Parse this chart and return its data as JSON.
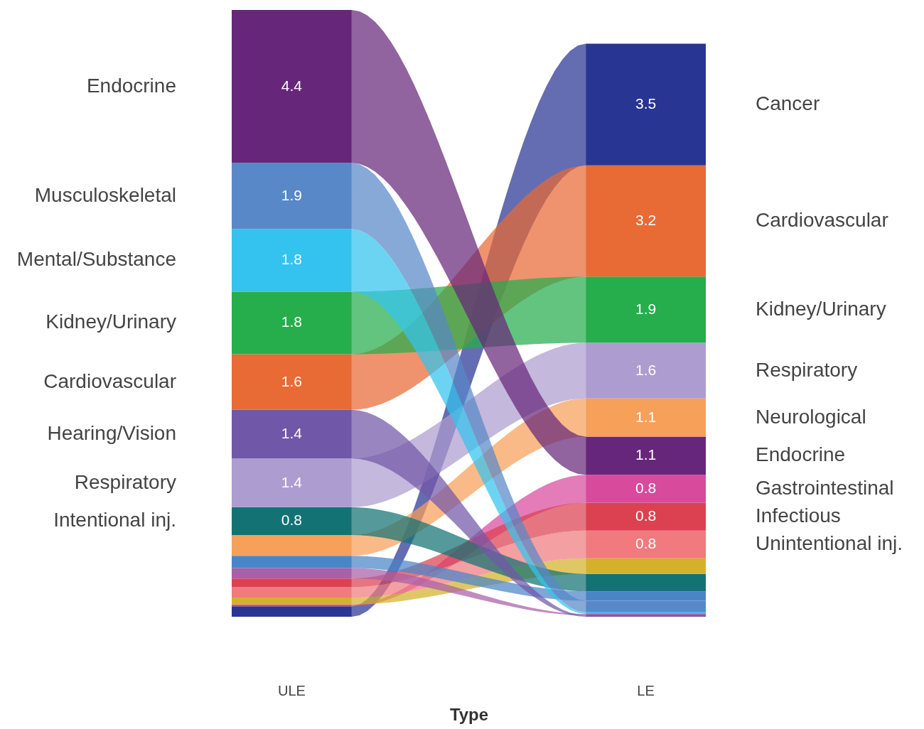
{
  "chart_data": {
    "type": "bar",
    "stacked": true,
    "xlabel": "Type",
    "categories": [
      "ULE",
      "LE"
    ],
    "series": [
      {
        "color": "#283593",
        "values": [
          0.3,
          null
        ]
      },
      {
        "color": "#d84a9c",
        "values": [
          0.05,
          null
        ]
      },
      {
        "color": "#d4b12a",
        "values": [
          0.2,
          null
        ]
      },
      {
        "color": "#f07a7e",
        "values": [
          0.3,
          null
        ]
      },
      {
        "color": "#db4151",
        "values": [
          0.25,
          null
        ]
      },
      {
        "color": "#a860a8",
        "values": [
          0.3,
          null
        ]
      },
      {
        "color": "#4a85c8",
        "values": [
          0.35,
          null
        ]
      },
      {
        "color": "#f6a05a",
        "values": [
          0.6,
          null
        ]
      },
      {
        "name": "Intentional inj.",
        "color": "#137273",
        "values": [
          0.8,
          null
        ],
        "value_labels": [
          "0.8",
          null
        ]
      },
      {
        "name": "Respiratory",
        "color": "#ad9ccf",
        "values": [
          1.4,
          null
        ],
        "value_labels": [
          "1.4",
          null
        ]
      },
      {
        "name": "Hearing/Vision",
        "color": "#7157a8",
        "values": [
          1.4,
          null
        ],
        "value_labels": [
          "1.4",
          null
        ]
      },
      {
        "name": "Cardiovascular",
        "color": "#e86a35",
        "values": [
          1.6,
          null
        ],
        "value_labels": [
          "1.6",
          null
        ]
      },
      {
        "name": "Kidney/Urinary",
        "color": "#26ad4c",
        "values": [
          1.8,
          null
        ],
        "value_labels": [
          "1.8",
          null
        ]
      },
      {
        "name": "Mental/Substance",
        "color": "#33c3ee",
        "values": [
          1.8,
          null
        ],
        "value_labels": [
          "1.8",
          null
        ]
      },
      {
        "name": "Musculoskeletal",
        "color": "#5888c8",
        "values": [
          1.9,
          null
        ],
        "value_labels": [
          "1.9",
          null
        ]
      },
      {
        "name": "Endocrine",
        "color": "#66277a",
        "values": [
          4.4,
          null
        ],
        "value_labels": [
          "4.4",
          null
        ]
      },
      {
        "color": "#7157a8",
        "values": [
          null,
          0.04
        ]
      },
      {
        "color": "#a860a8",
        "values": [
          null,
          0.04
        ]
      },
      {
        "color": "#33c3ee",
        "values": [
          null,
          0.05
        ]
      },
      {
        "color": "#5888c8",
        "values": [
          null,
          0.33
        ]
      },
      {
        "color": "#4a85c8",
        "values": [
          null,
          0.27
        ]
      },
      {
        "color": "#137273",
        "values": [
          null,
          0.5
        ]
      },
      {
        "color": "#d4b12a",
        "values": [
          null,
          0.45
        ]
      },
      {
        "name": "Unintentional inj.",
        "color": "#f07a7e",
        "values": [
          null,
          0.8
        ],
        "value_labels": [
          null,
          "0.8"
        ]
      },
      {
        "name": "Infectious",
        "color": "#db4151",
        "values": [
          null,
          0.8
        ],
        "value_labels": [
          null,
          "0.8"
        ]
      },
      {
        "name": "Gastrointestinal",
        "color": "#d84a9c",
        "values": [
          null,
          0.8
        ],
        "value_labels": [
          null,
          "0.8"
        ]
      },
      {
        "name": "Endocrine",
        "color": "#66277a",
        "values": [
          null,
          1.1
        ],
        "value_labels": [
          null,
          "1.1"
        ]
      },
      {
        "name": "Neurological",
        "color": "#f6a05a",
        "values": [
          null,
          1.1
        ],
        "value_labels": [
          null,
          "1.1"
        ]
      },
      {
        "name": "Respiratory",
        "color": "#ad9ccf",
        "values": [
          null,
          1.6
        ],
        "value_labels": [
          null,
          "1.6"
        ]
      },
      {
        "name": "Kidney/Urinary",
        "color": "#26ad4c",
        "values": [
          null,
          1.9
        ],
        "value_labels": [
          null,
          "1.9"
        ]
      },
      {
        "name": "Cardiovascular",
        "color": "#e86a35",
        "values": [
          null,
          3.2
        ],
        "value_labels": [
          null,
          "3.2"
        ]
      },
      {
        "name": "Cancer",
        "color": "#283593",
        "values": [
          null,
          3.5
        ],
        "value_labels": [
          null,
          "3.5"
        ]
      }
    ]
  }
}
